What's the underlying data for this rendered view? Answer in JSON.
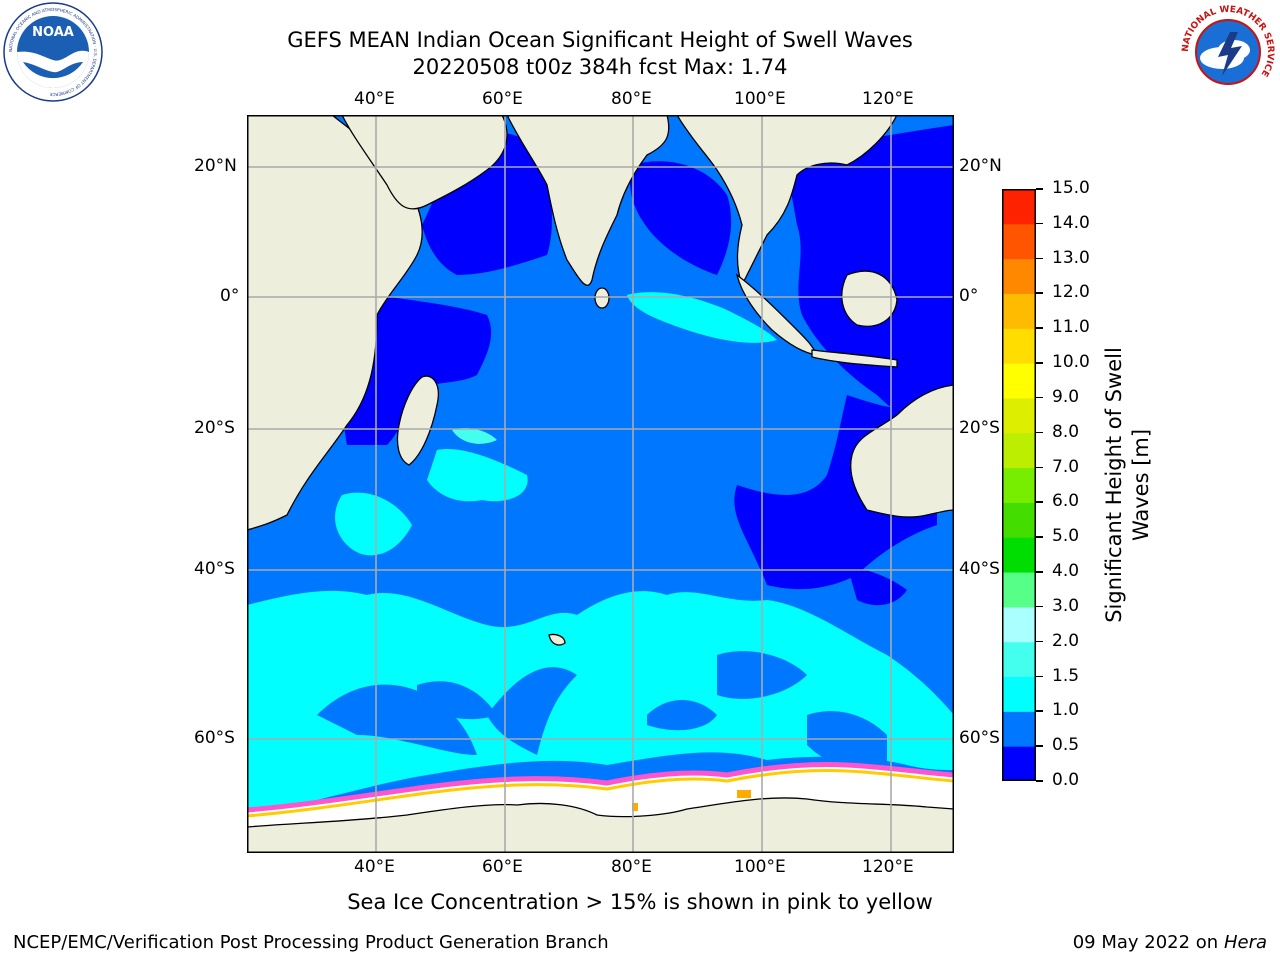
{
  "header": {
    "title_line1": "GEFS MEAN Indian Ocean Significant Height of Swell Waves",
    "title_line2": "20220508 t00z 384h fcst   Max: 1.74"
  },
  "logos": {
    "noaa_text": "NOAA",
    "noaa_ring": "NATIONAL OCEANIC AND ATMOSPHERIC ADMINISTRATION · U.S. DEPARTMENT OF COMMERCE",
    "nws_ring": "NATIONAL WEATHER SERVICE"
  },
  "map": {
    "lon_ticks": [
      "40°E",
      "60°E",
      "80°E",
      "100°E",
      "120°E"
    ],
    "lat_ticks": [
      "20°N",
      "0°",
      "20°S",
      "40°S",
      "60°S"
    ],
    "colors": {
      "land": "#eeeedd",
      "ocean_deep": "#0000ff",
      "ocean_mid": "#0077ff",
      "ocean_cyan": "#00ffff",
      "ocean_light": "#44ffee",
      "ice": "#ffffff",
      "ice_edge_pink": "#ff55cc",
      "ice_edge_yellow": "#ffcc00",
      "grid": "#aaaaaa"
    }
  },
  "colorbar": {
    "label": "Significant Height of Swell Waves [m]",
    "label_line1": "Significant Height of Swell",
    "label_line2": "Waves [m]",
    "ticks": [
      "0.0",
      "0.5",
      "1.0",
      "1.5",
      "2.0",
      "3.0",
      "4.0",
      "5.0",
      "6.0",
      "7.0",
      "8.0",
      "9.0",
      "10.0",
      "11.0",
      "12.0",
      "13.0",
      "14.0",
      "15.0"
    ],
    "colors": [
      "#0000ff",
      "#0077ff",
      "#00ffff",
      "#44ffee",
      "#aaffff",
      "#55ff88",
      "#00dd00",
      "#44dd00",
      "#77ee00",
      "#bbee00",
      "#ddee00",
      "#ffff00",
      "#ffdd00",
      "#ffbb00",
      "#ff8800",
      "#ff5500",
      "#ff2200",
      "#ff0000"
    ]
  },
  "footer": {
    "note": "Sea Ice Concentration > 15% is shown in pink to yellow",
    "credit": "NCEP/EMC/Verification Post Processing Product Generation Branch",
    "date": "09 May 2022 on",
    "machine": "Hera"
  }
}
